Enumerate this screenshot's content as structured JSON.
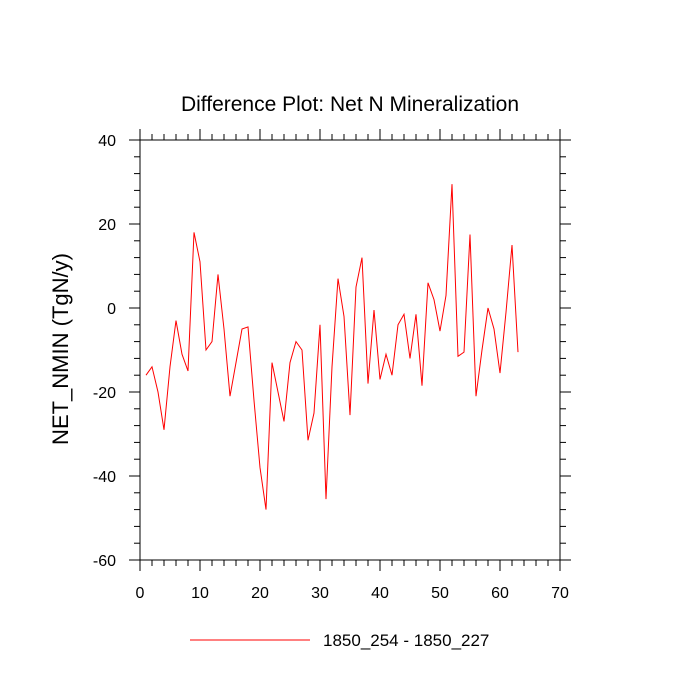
{
  "chart_data": {
    "type": "line",
    "title": "Difference Plot: Net N Mineralization",
    "xlabel": "",
    "ylabel": "NET_NMIN  (TgN/y)",
    "xlim": [
      0,
      70
    ],
    "ylim": [
      -60,
      40
    ],
    "x_ticks": [
      0,
      10,
      20,
      30,
      40,
      50,
      60,
      70
    ],
    "x_tick_labels": [
      "0",
      "10",
      "20",
      "30",
      "40",
      "50",
      "60",
      "70"
    ],
    "y_ticks": [
      -60,
      -40,
      -20,
      0,
      20,
      40
    ],
    "y_tick_labels": [
      "-60",
      "-40",
      "-20",
      "0",
      "20",
      "40"
    ],
    "grid": false,
    "legend_position": "bottom-center",
    "series": [
      {
        "name": "1850_254 - 1850_227",
        "color": "#ff0000",
        "x": [
          1,
          2,
          3,
          4,
          5,
          6,
          7,
          8,
          9,
          10,
          11,
          12,
          13,
          14,
          15,
          16,
          17,
          18,
          19,
          20,
          21,
          22,
          23,
          24,
          25,
          26,
          27,
          28,
          29,
          30,
          31,
          32,
          33,
          34,
          35,
          36,
          37,
          38,
          39,
          40,
          41,
          42,
          43,
          44,
          45,
          46,
          47,
          48,
          49,
          50,
          51,
          52,
          53,
          54,
          55,
          56,
          57,
          58,
          59,
          60,
          61,
          62,
          63
        ],
        "values": [
          -16,
          -14,
          -20,
          -29,
          -14,
          -3,
          -11,
          -15,
          18,
          11,
          -10,
          -8,
          8,
          -5,
          -21,
          -13,
          -5,
          -4.5,
          -22,
          -38,
          -48,
          -13,
          -20,
          -27,
          -13,
          -8,
          -10,
          -31.5,
          -25,
          -4,
          -45.5,
          -14,
          7,
          -2,
          -25.5,
          5,
          12,
          -18,
          -0.5,
          -17,
          -11,
          -16,
          -4,
          -1.5,
          -12,
          -1.5,
          -18.5,
          6,
          2,
          -5.5,
          3,
          29.5,
          -11.5,
          -10.5,
          17.5,
          -21,
          -10,
          0,
          -5,
          -15.5,
          -1,
          15,
          -10.5
        ]
      }
    ]
  }
}
